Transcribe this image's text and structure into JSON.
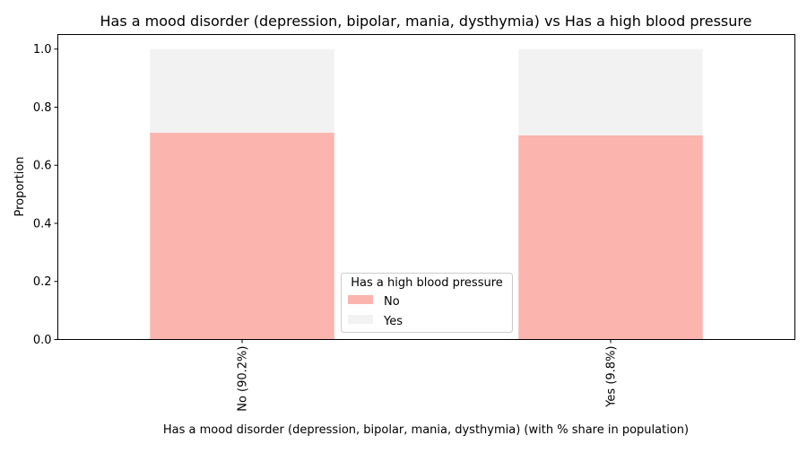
{
  "chart_data": {
    "type": "bar",
    "stacked": true,
    "title": "Has a mood disorder (depression, bipolar, mania, dysthymia) vs Has a high blood pressure",
    "xlabel": "Has a mood disorder (depression, bipolar, mania, dysthymia) (with % share in population)",
    "ylabel": "Proportion",
    "categories": [
      "No (90.2%)",
      "Yes (9.8%)"
    ],
    "series": [
      {
        "name": "No",
        "values": [
          0.712,
          0.703
        ],
        "color": "#fbb4ae"
      },
      {
        "name": "Yes",
        "values": [
          0.288,
          0.297
        ],
        "color": "#f2f2f2"
      }
    ],
    "ylim": [
      0,
      1.05
    ],
    "yticks": [
      0.0,
      0.2,
      0.4,
      0.6,
      0.8,
      1.0
    ],
    "ytick_labels": [
      "0.0",
      "0.2",
      "0.4",
      "0.6",
      "0.8",
      "1.0"
    ],
    "grid": false,
    "legend": {
      "title": "Has a high blood pressure",
      "position": "lower-center"
    }
  }
}
